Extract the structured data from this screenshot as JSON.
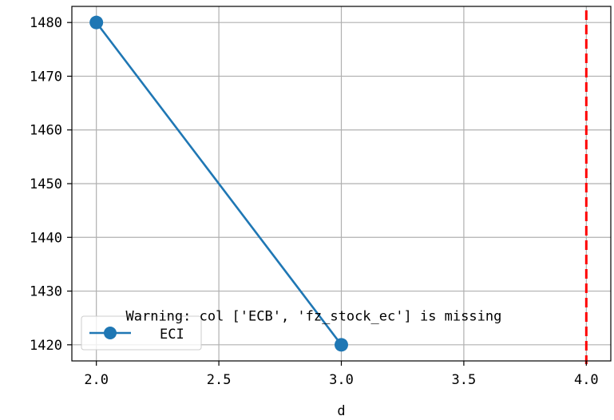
{
  "chart_data": {
    "type": "line",
    "title": "",
    "xlabel": "d",
    "ylabel": "",
    "xlim": [
      1.9,
      4.1
    ],
    "ylim": [
      1417,
      1483
    ],
    "x_ticks": [
      2.0,
      2.5,
      3.0,
      3.5,
      4.0
    ],
    "x_tick_labels": [
      "2.0",
      "2.5",
      "3.0",
      "3.5",
      "4.0"
    ],
    "y_ticks": [
      1420,
      1430,
      1440,
      1450,
      1460,
      1470,
      1480
    ],
    "y_tick_labels": [
      "1420",
      "1430",
      "1440",
      "1450",
      "1460",
      "1470",
      "1480"
    ],
    "grid": true,
    "legend_position": "lower-left",
    "series": [
      {
        "name": "ECI",
        "x": [
          2.0,
          3.0
        ],
        "y": [
          1480,
          1420
        ],
        "color": "#1f77b4",
        "marker": "circle"
      }
    ],
    "vlines": [
      {
        "x": 4.0,
        "color": "#ff0000",
        "style": "dashed"
      }
    ],
    "annotations": [
      {
        "text": "Warning: col ['ECB', 'fz_stock_ec'] is missing",
        "x": 2.12,
        "y": 1424.5
      }
    ]
  }
}
